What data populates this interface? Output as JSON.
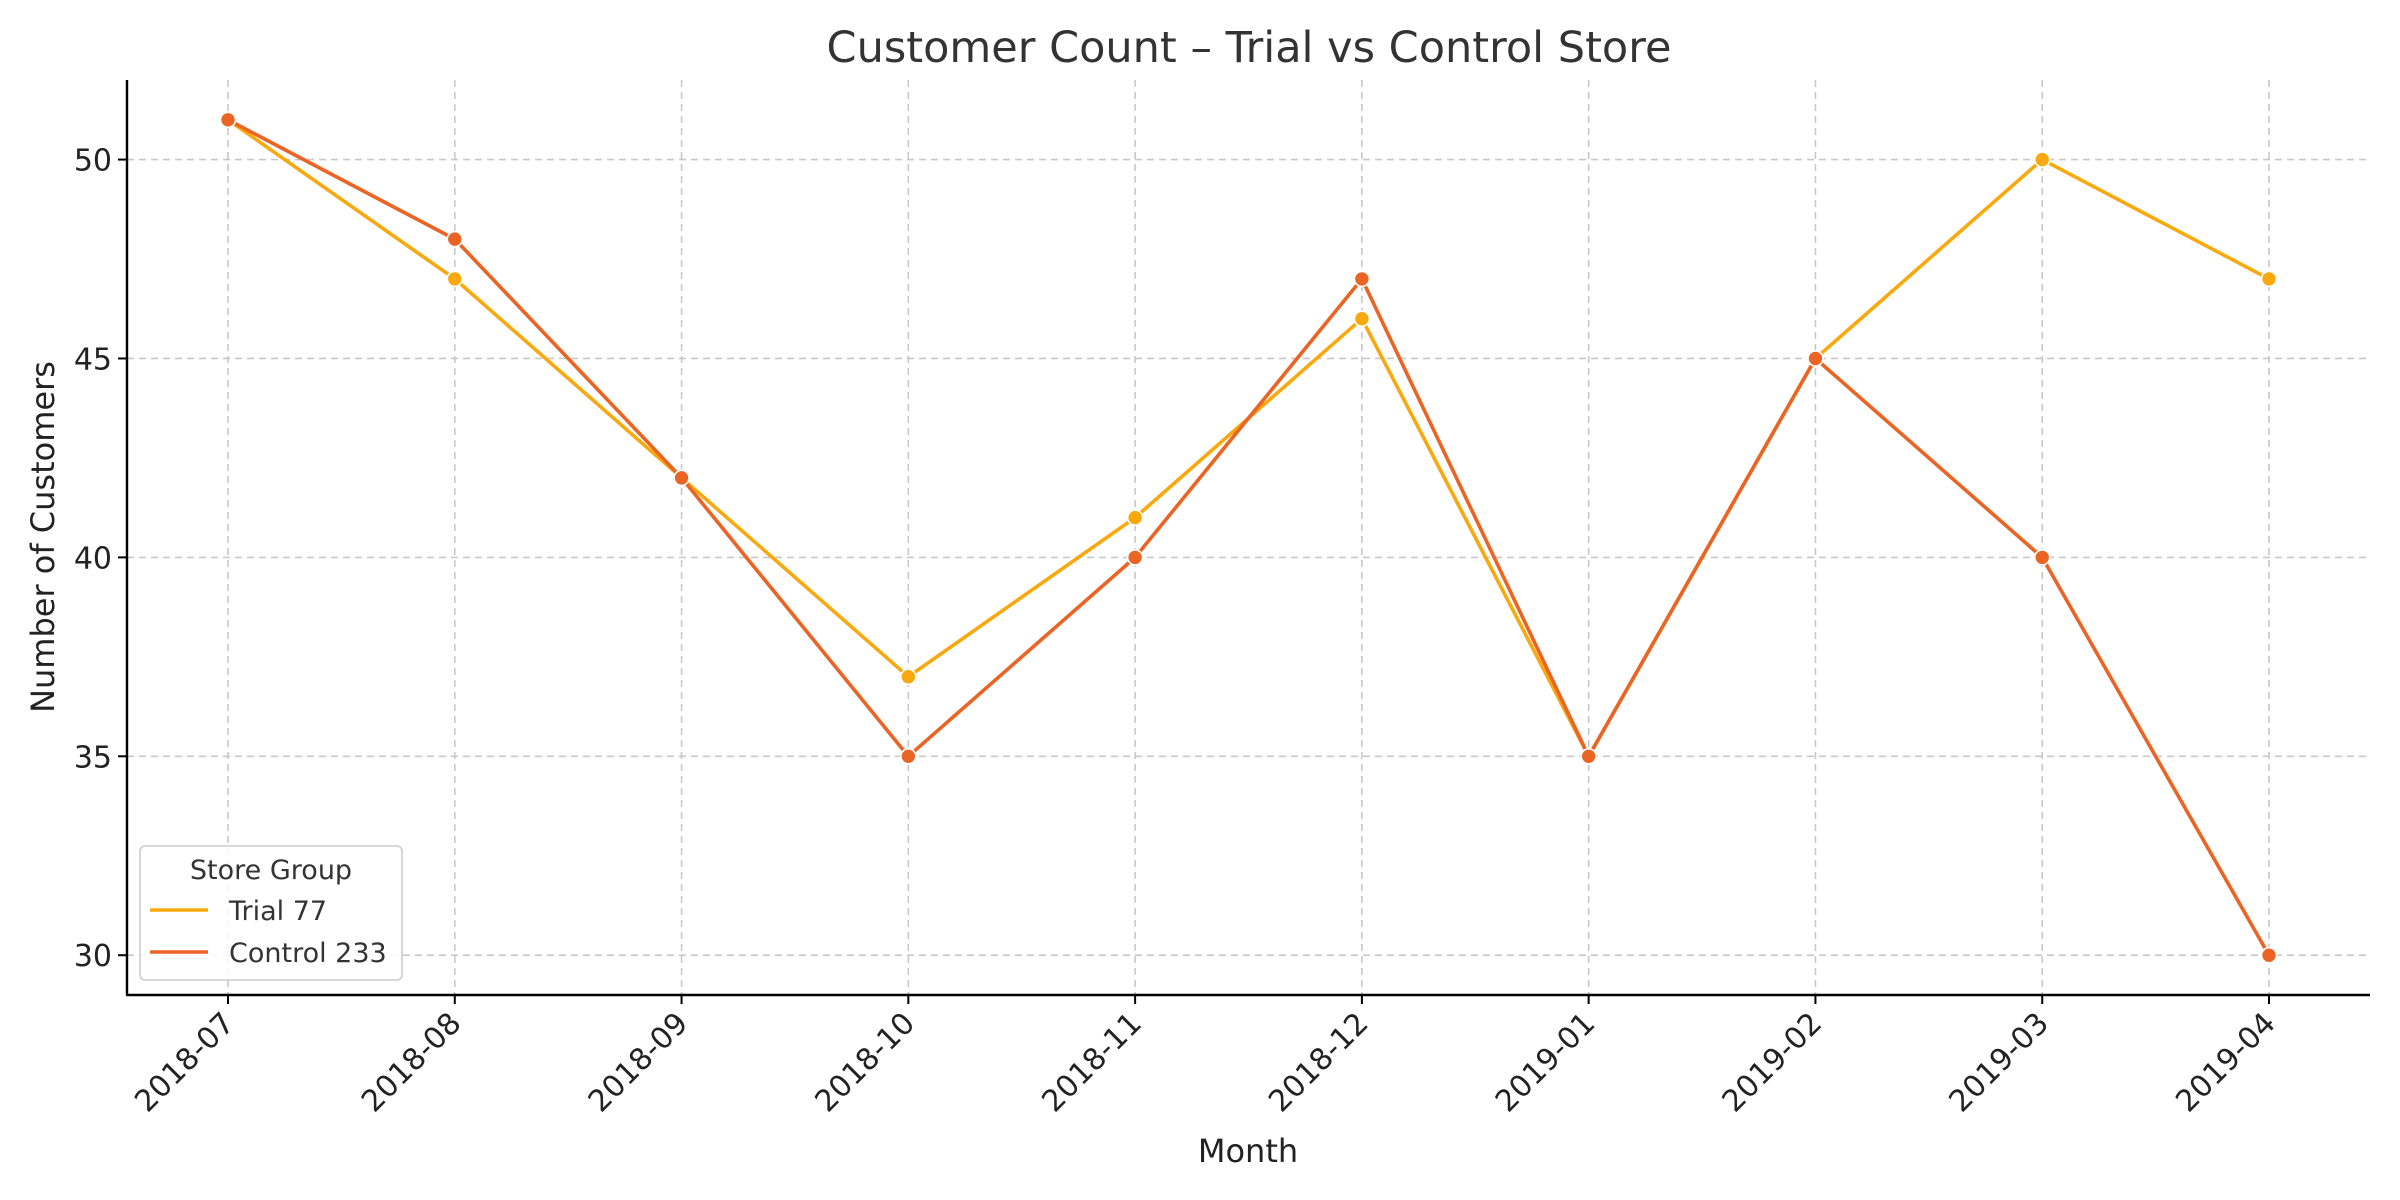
{
  "chart_data": {
    "type": "line",
    "title": "Customer Count – Trial vs Control Store",
    "xlabel": "Month",
    "ylabel": "Number of Customers",
    "categories": [
      "2018-07",
      "2018-08",
      "2018-09",
      "2018-10",
      "2018-11",
      "2018-12",
      "2019-01",
      "2019-02",
      "2019-03",
      "2019-04"
    ],
    "y_ticks": [
      30,
      35,
      40,
      45,
      50
    ],
    "ylim": [
      29,
      52
    ],
    "grid": true,
    "legend": {
      "title": "Store Group",
      "placement": "lower-left"
    },
    "series": [
      {
        "name": "Trial 77",
        "color": "#F9A90E",
        "values": [
          51,
          47,
          42,
          37,
          41,
          46,
          35,
          45,
          50,
          47
        ]
      },
      {
        "name": "Control 233",
        "color": "#EC6424",
        "values": [
          51,
          48,
          42,
          35,
          40,
          47,
          35,
          45,
          40,
          30
        ]
      }
    ]
  }
}
